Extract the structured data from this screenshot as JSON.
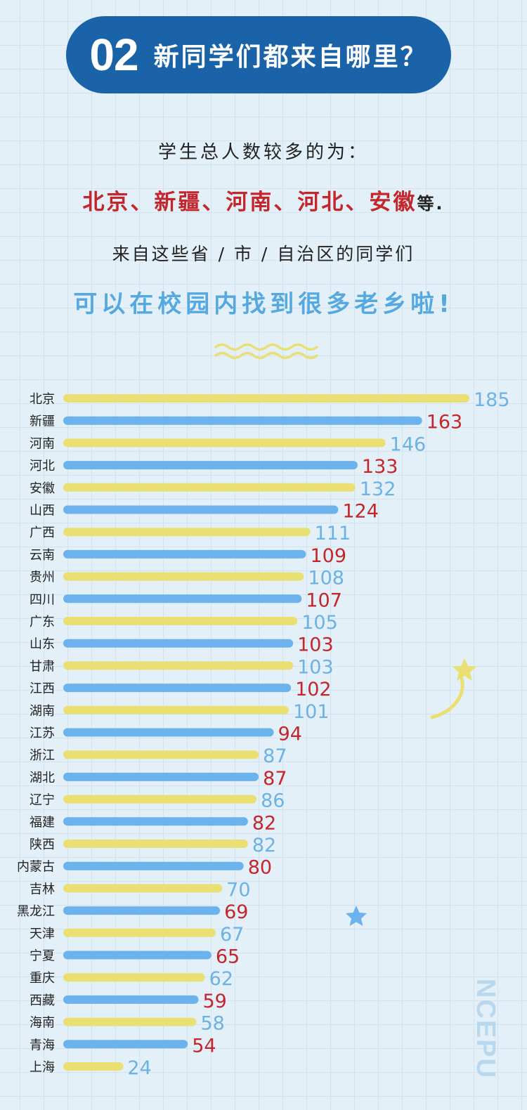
{
  "header": {
    "number": "02",
    "title": "新同学们都来自哪里？"
  },
  "intro": "学生总人数较多的为：",
  "top_provinces": "北京、新疆、河南、河北、安徽",
  "top_provinces_suffix": "等.",
  "from_line": "来自这些省 / 市 / 自治区的同学们",
  "slogan": "可以在校园内找到很多老乡啦!",
  "logo": "NCEPU",
  "colors": {
    "yellow": "#e9df73",
    "blue": "#6cb2ec",
    "red": "#c4262c",
    "light_blue": "#6cb2e3",
    "pill": "#1a63a8"
  },
  "chart_data": {
    "type": "bar",
    "orientation": "horizontal",
    "categories": [
      "北京",
      "新疆",
      "河南",
      "河北",
      "安徽",
      "山西",
      "广西",
      "云南",
      "贵州",
      "四川",
      "广东",
      "山东",
      "甘肃",
      "江西",
      "湖南",
      "江苏",
      "浙江",
      "湖北",
      "辽宁",
      "福建",
      "陕西",
      "内蒙古",
      "吉林",
      "黑龙江",
      "天津",
      "宁夏",
      "重庆",
      "西藏",
      "海南",
      "青海",
      "上海"
    ],
    "values": [
      185,
      163,
      146,
      133,
      132,
      124,
      111,
      109,
      108,
      107,
      105,
      103,
      103,
      102,
      101,
      94,
      87,
      87,
      86,
      82,
      82,
      80,
      70,
      69,
      67,
      65,
      62,
      59,
      58,
      54,
      24
    ],
    "xlim": [
      0,
      185
    ],
    "grid": false,
    "legend": "none"
  }
}
